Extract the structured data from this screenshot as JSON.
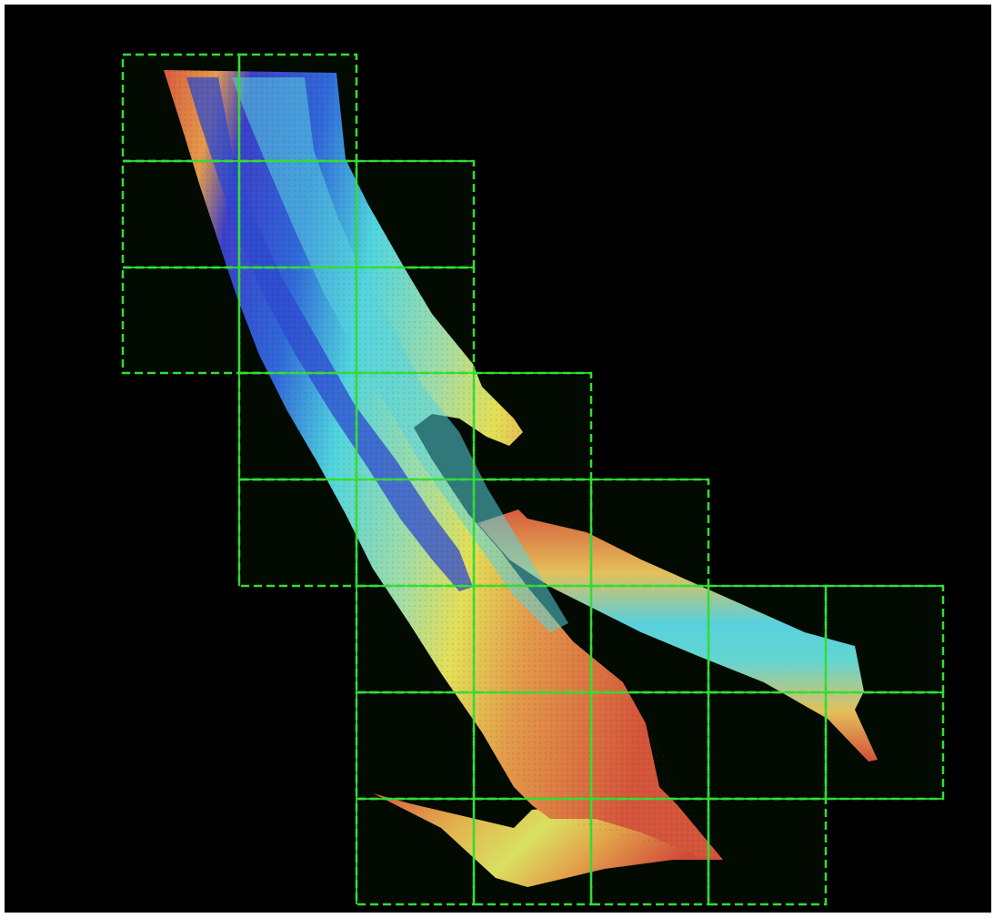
{
  "colors": {
    "background": "#000000",
    "tile_fill": "#020a02",
    "tile_outline": "#33dd33",
    "deep": "#2a3fd0",
    "mid_deep": "#4fd7e0",
    "mid": "#d8e34a",
    "shallow": "#d85a3c"
  },
  "legend": [],
  "tiles": {
    "count": 31,
    "columns": 7,
    "rows": 8
  },
  "icons": [
    "bathymetry-swath",
    "tile-grid"
  ]
}
